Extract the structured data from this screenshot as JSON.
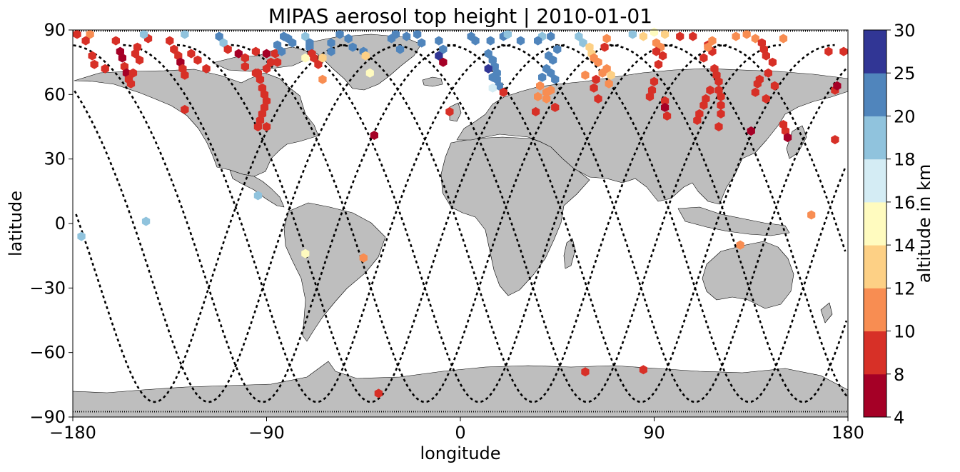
{
  "chart_data": {
    "type": "scatter",
    "title": "MIPAS aerosol top height | 2010-01-01",
    "xlabel": "longitude",
    "ylabel": "latitude",
    "xlim": [
      -180,
      180
    ],
    "ylim": [
      -90,
      90
    ],
    "xticks": [
      -180,
      -90,
      0,
      90,
      180
    ],
    "yticks": [
      -90,
      -60,
      -30,
      0,
      30,
      60,
      90
    ],
    "grid": false,
    "background": "world-coastlines-land-gray",
    "land_color": "#bebebe",
    "track_color": "#000000",
    "marker": "hexagon",
    "colorbar": {
      "label": "altitude in km",
      "boundaries": [
        4,
        8,
        10,
        12,
        14,
        16,
        18,
        20,
        25,
        30
      ],
      "tick_labels": [
        "4",
        "8",
        "10",
        "12",
        "14",
        "16",
        "18",
        "20",
        "25",
        "30"
      ],
      "colors": [
        "#a50026",
        "#d73027",
        "#f46d43",
        "#fdae61",
        "#fee090",
        "#ffffbf",
        "#e0f3f8",
        "#abd9e9",
        "#74add1",
        "#313695"
      ],
      "colors_used": [
        "#a50026",
        "#d73027",
        "#f88d52",
        "#fdd085",
        "#fffbbf",
        "#d4ecf4",
        "#90c3dd",
        "#5085bc",
        "#313695"
      ],
      "orientation": "vertical",
      "position": "right"
    },
    "series": [
      {
        "points": [
          [
            -178,
            88,
            9
          ],
          [
            -172,
            88,
            11
          ],
          [
            -174,
            85,
            9
          ],
          [
            -171,
            78,
            9
          ],
          [
            -170,
            74,
            9
          ],
          [
            -165,
            72,
            9
          ],
          [
            -160,
            85,
            9
          ],
          [
            -158,
            80,
            6
          ],
          [
            -157,
            77,
            6
          ],
          [
            -156,
            73,
            9
          ],
          [
            -155,
            70,
            6
          ],
          [
            -154,
            67,
            9
          ],
          [
            -153,
            65,
            9
          ],
          [
            -150,
            82,
            9
          ],
          [
            -151,
            79,
            9
          ],
          [
            -149,
            76,
            9
          ],
          [
            -152,
            70,
            9
          ],
          [
            -145,
            86,
            9
          ],
          [
            -147,
            88,
            19
          ],
          [
            -135,
            85,
            9
          ],
          [
            -133,
            81,
            9
          ],
          [
            -131,
            78,
            9
          ],
          [
            -130,
            75,
            6
          ],
          [
            -129,
            72,
            9
          ],
          [
            -128,
            69,
            9
          ],
          [
            -128,
            53,
            9
          ],
          [
            -128,
            88,
            19
          ],
          [
            -125,
            79,
            9
          ],
          [
            -122,
            76,
            9
          ],
          [
            -118,
            72,
            9
          ],
          [
            -112,
            87,
            22
          ],
          [
            -110,
            84,
            19
          ],
          [
            -108,
            81,
            9
          ],
          [
            -103,
            79,
            6
          ],
          [
            -100,
            77,
            9
          ],
          [
            -100,
            73,
            9
          ],
          [
            -95,
            80,
            9
          ],
          [
            -94,
            70,
            9
          ],
          [
            -93,
            67,
            9
          ],
          [
            -92,
            63,
            9
          ],
          [
            -91,
            60,
            9
          ],
          [
            -90,
            57,
            9
          ],
          [
            -91,
            54,
            9
          ],
          [
            -92,
            51,
            9
          ],
          [
            -93,
            48,
            9
          ],
          [
            -94,
            45,
            9
          ],
          [
            -90,
            45,
            9
          ],
          [
            -95,
            70,
            9
          ],
          [
            -90,
            72,
            9
          ],
          [
            -88,
            75,
            9
          ],
          [
            -86,
            79,
            9
          ],
          [
            -85,
            83,
            22
          ],
          [
            -82,
            87,
            22
          ],
          [
            -80,
            86,
            22
          ],
          [
            -85,
            75,
            9
          ],
          [
            -83,
            80,
            22
          ],
          [
            -90,
            79,
            6
          ],
          [
            -94,
            13,
            19
          ],
          [
            -176,
            -6,
            19
          ],
          [
            -146,
            1,
            19
          ],
          [
            -72,
            87,
            19
          ],
          [
            -70,
            82,
            22
          ],
          [
            -69,
            79,
            9
          ],
          [
            -68,
            77,
            9
          ],
          [
            -66,
            74,
            9
          ],
          [
            -64,
            67,
            11
          ],
          [
            -64,
            77,
            13
          ],
          [
            -70,
            84,
            22
          ],
          [
            -72,
            77,
            15
          ],
          [
            -78,
            84,
            22
          ],
          [
            -60,
            84,
            22
          ],
          [
            -60,
            80,
            22
          ],
          [
            -56,
            88,
            22
          ],
          [
            -52,
            86,
            22
          ],
          [
            -50,
            82,
            22
          ],
          [
            -45,
            80,
            22
          ],
          [
            -44,
            78,
            13
          ],
          [
            -42,
            70,
            15
          ],
          [
            -40,
            41,
            6
          ],
          [
            -38,
            -79,
            9
          ],
          [
            -72,
            -14,
            15
          ],
          [
            -45,
            -16,
            11
          ],
          [
            -32,
            86,
            22
          ],
          [
            -30,
            88,
            22
          ],
          [
            -28,
            81,
            22
          ],
          [
            -18,
            84,
            22
          ],
          [
            -10,
            85,
            22
          ],
          [
            -8,
            81,
            22
          ],
          [
            -10,
            78,
            28
          ],
          [
            -8,
            75,
            6
          ],
          [
            -5,
            52,
            9
          ],
          [
            -20,
            88,
            22
          ],
          [
            -25,
            87,
            22
          ],
          [
            5,
            87,
            22
          ],
          [
            7,
            85,
            22
          ],
          [
            14,
            85,
            22
          ],
          [
            13,
            79,
            22
          ],
          [
            15,
            76,
            22
          ],
          [
            16,
            73,
            22
          ],
          [
            13,
            72,
            27
          ],
          [
            17,
            70,
            22
          ],
          [
            15,
            68,
            22
          ],
          [
            17,
            67,
            22
          ],
          [
            18,
            64,
            22
          ],
          [
            15,
            63,
            16
          ],
          [
            20,
            61,
            9
          ],
          [
            20,
            87,
            22
          ],
          [
            22,
            88,
            19
          ],
          [
            38,
            87,
            19
          ],
          [
            42,
            87,
            22
          ],
          [
            45,
            81,
            22
          ],
          [
            41,
            78,
            22
          ],
          [
            43,
            76,
            22
          ],
          [
            40,
            72,
            22
          ],
          [
            42,
            70,
            22
          ],
          [
            38,
            68,
            22
          ],
          [
            44,
            67,
            22
          ],
          [
            37,
            64,
            11
          ],
          [
            36,
            59,
            11
          ],
          [
            40,
            58,
            11
          ],
          [
            35,
            52,
            9
          ],
          [
            40,
            61,
            11
          ],
          [
            36,
            85,
            22
          ],
          [
            28,
            85,
            22
          ],
          [
            44,
            54,
            9
          ],
          [
            42,
            62,
            11
          ],
          [
            55,
            87,
            19
          ],
          [
            57,
            84,
            19
          ],
          [
            60,
            82,
            13
          ],
          [
            61,
            79,
            13
          ],
          [
            62,
            77,
            11
          ],
          [
            64,
            75,
            11
          ],
          [
            58,
            69,
            11
          ],
          [
            63,
            67,
            9
          ],
          [
            62,
            63,
            9
          ],
          [
            64,
            58,
            9
          ],
          [
            68,
            86,
            11
          ],
          [
            67,
            82,
            9
          ],
          [
            68,
            72,
            11
          ],
          [
            70,
            69,
            13
          ],
          [
            69,
            65,
            11
          ],
          [
            66,
            70,
            11
          ],
          [
            58,
            -69,
            9
          ],
          [
            80,
            88,
            19
          ],
          [
            85,
            87,
            13
          ],
          [
            90,
            89,
            15
          ],
          [
            95,
            88,
            13
          ],
          [
            91,
            84,
            11
          ],
          [
            93,
            82,
            11
          ],
          [
            91,
            80,
            9
          ],
          [
            94,
            78,
            9
          ],
          [
            92,
            74,
            9
          ],
          [
            90,
            66,
            9
          ],
          [
            89,
            62,
            9
          ],
          [
            88,
            59,
            9
          ],
          [
            95,
            57,
            9
          ],
          [
            95,
            54,
            6
          ],
          [
            96,
            50,
            9
          ],
          [
            85,
            -68,
            9
          ],
          [
            102,
            87,
            9
          ],
          [
            108,
            87,
            9
          ],
          [
            115,
            83,
            9
          ],
          [
            117,
            80,
            9
          ],
          [
            113,
            77,
            9
          ],
          [
            118,
            72,
            9
          ],
          [
            119,
            69,
            9
          ],
          [
            120,
            66,
            9
          ],
          [
            120,
            62,
            9
          ],
          [
            121,
            59,
            9
          ],
          [
            121,
            55,
            9
          ],
          [
            121,
            51,
            9
          ],
          [
            116,
            62,
            9
          ],
          [
            114,
            58,
            9
          ],
          [
            113,
            55,
            9
          ],
          [
            111,
            51,
            9
          ],
          [
            110,
            48,
            9
          ],
          [
            120,
            45,
            9
          ],
          [
            115,
            82,
            11
          ],
          [
            117,
            85,
            11
          ],
          [
            128,
            87,
            11
          ],
          [
            133,
            88,
            11
          ],
          [
            137,
            86,
            11
          ],
          [
            140,
            84,
            9
          ],
          [
            141,
            81,
            9
          ],
          [
            142,
            78,
            9
          ],
          [
            145,
            75,
            9
          ],
          [
            143,
            70,
            9
          ],
          [
            139,
            67,
            9
          ],
          [
            138,
            65,
            9
          ],
          [
            137,
            61,
            9
          ],
          [
            146,
            64,
            9
          ],
          [
            142,
            58,
            9
          ],
          [
            150,
            46,
            9
          ],
          [
            151,
            43,
            9
          ],
          [
            152,
            40,
            6
          ],
          [
            135,
            43,
            6
          ],
          [
            163,
            4,
            11
          ],
          [
            150,
            86,
            11
          ],
          [
            130,
            -10,
            11
          ],
          [
            171,
            80,
            9
          ],
          [
            178,
            80,
            9
          ],
          [
            174,
            62,
            9
          ],
          [
            175,
            64,
            6
          ],
          [
            174,
            39,
            9
          ]
        ]
      }
    ]
  }
}
